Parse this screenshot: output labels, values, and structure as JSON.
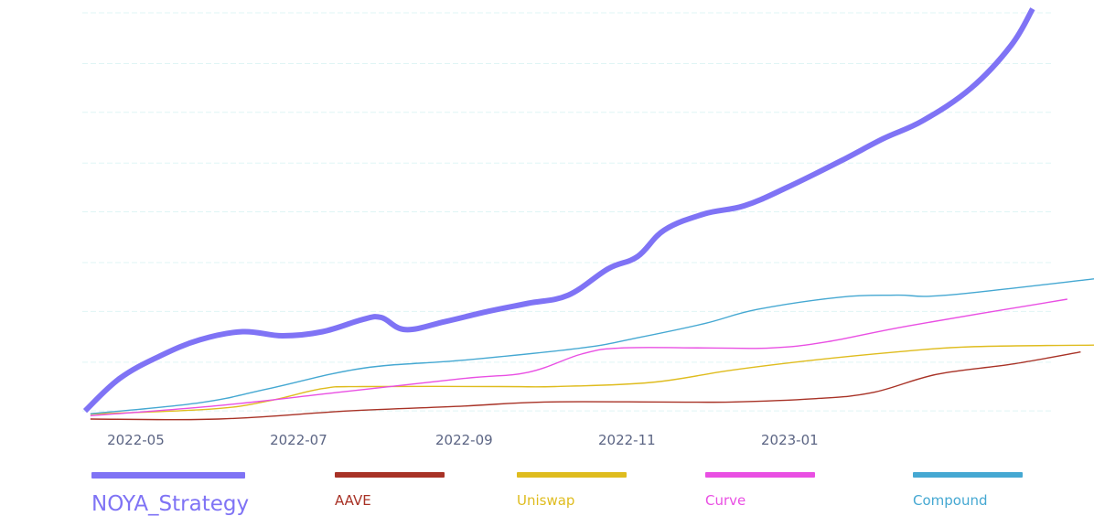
{
  "chart_data": {
    "type": "line",
    "title": "",
    "xlabel": "",
    "ylabel": "",
    "x_ticks": [
      "2022-05",
      "2022-07",
      "2022-09",
      "2022-11",
      "2023-01"
    ],
    "x_range": [
      "2022-04-12",
      "2023-04-25"
    ],
    "ylim": [
      0,
      100
    ],
    "y_ticks_visible": false,
    "grid": "horizontal-dashed",
    "gridline_values": [
      2,
      14,
      26.5,
      38.5,
      51,
      63,
      75.5,
      87.5,
      100
    ],
    "legend_position": "bottom",
    "series": [
      {
        "name": "NOYA_Strategy",
        "color": "#7f73f5",
        "emphasis": "thick",
        "points": [
          [
            "2022-04-12",
            2
          ],
          [
            "2022-04-25",
            10
          ],
          [
            "2022-05-10",
            15.5
          ],
          [
            "2022-05-25",
            19.5
          ],
          [
            "2022-06-10",
            21.5
          ],
          [
            "2022-06-25",
            20.5
          ],
          [
            "2022-07-10",
            21.5
          ],
          [
            "2022-07-25",
            24.5
          ],
          [
            "2022-08-01",
            25
          ],
          [
            "2022-08-10",
            22
          ],
          [
            "2022-08-25",
            24
          ],
          [
            "2022-09-10",
            26.5
          ],
          [
            "2022-09-25",
            28.5
          ],
          [
            "2022-10-10",
            30.5
          ],
          [
            "2022-10-25",
            37
          ],
          [
            "2022-11-05",
            40
          ],
          [
            "2022-11-15",
            46.5
          ],
          [
            "2022-11-30",
            50.5
          ],
          [
            "2022-12-15",
            52.5
          ],
          [
            "2022-12-31",
            57
          ],
          [
            "2023-01-20",
            63.5
          ],
          [
            "2023-02-05",
            69
          ],
          [
            "2023-02-20",
            73.5
          ],
          [
            "2023-03-10",
            81.5
          ],
          [
            "2023-03-25",
            92
          ],
          [
            "2023-04-02",
            101
          ]
        ]
      },
      {
        "name": "AAVE",
        "color": "#a83226",
        "emphasis": "thin",
        "points": [
          [
            "2022-04-14",
            0
          ],
          [
            "2022-06-01",
            0
          ],
          [
            "2022-07-20",
            2
          ],
          [
            "2022-09-01",
            3.2
          ],
          [
            "2022-10-01",
            4.2
          ],
          [
            "2022-11-15",
            4.2
          ],
          [
            "2022-12-10",
            4.2
          ],
          [
            "2023-01-10",
            5
          ],
          [
            "2023-02-01",
            6.5
          ],
          [
            "2023-02-25",
            11
          ],
          [
            "2023-03-25",
            13.5
          ],
          [
            "2023-04-20",
            16.5
          ]
        ]
      },
      {
        "name": "Uniswap",
        "color": "#dfbc1e",
        "emphasis": "thin",
        "points": [
          [
            "2022-04-14",
            1.2
          ],
          [
            "2022-05-30",
            2.5
          ],
          [
            "2022-06-20",
            4.5
          ],
          [
            "2022-07-10",
            7.5
          ],
          [
            "2022-07-25",
            8
          ],
          [
            "2022-09-15",
            8
          ],
          [
            "2022-10-05",
            8
          ],
          [
            "2022-11-10",
            9
          ],
          [
            "2022-12-10",
            12
          ],
          [
            "2023-01-10",
            14.5
          ],
          [
            "2023-02-10",
            16.5
          ],
          [
            "2023-03-10",
            17.8
          ],
          [
            "2023-04-25",
            18.2
          ]
        ]
      },
      {
        "name": "Curve",
        "color": "#e94fe3",
        "emphasis": "thin",
        "points": [
          [
            "2022-04-14",
            0.8
          ],
          [
            "2022-06-01",
            3.3
          ],
          [
            "2022-07-15",
            6.5
          ],
          [
            "2022-09-01",
            10
          ],
          [
            "2022-09-25",
            11.5
          ],
          [
            "2022-10-15",
            16
          ],
          [
            "2022-10-30",
            17.5
          ],
          [
            "2022-12-01",
            17.5
          ],
          [
            "2022-12-25",
            17.5
          ],
          [
            "2023-01-15",
            19
          ],
          [
            "2023-02-15",
            23
          ],
          [
            "2023-04-15",
            29.5
          ]
        ]
      },
      {
        "name": "Compound",
        "color": "#45a8d2",
        "emphasis": "thin",
        "points": [
          [
            "2022-04-14",
            1.3
          ],
          [
            "2022-05-25",
            4
          ],
          [
            "2022-06-20",
            7.5
          ],
          [
            "2022-07-25",
            12.5
          ],
          [
            "2022-09-01",
            14.5
          ],
          [
            "2022-10-15",
            17.5
          ],
          [
            "2022-11-05",
            20
          ],
          [
            "2022-11-30",
            23.5
          ],
          [
            "2022-12-20",
            27
          ],
          [
            "2023-01-20",
            30
          ],
          [
            "2023-02-10",
            30.5
          ],
          [
            "2023-03-01",
            30.5
          ],
          [
            "2023-04-25",
            34.5
          ]
        ]
      }
    ]
  }
}
